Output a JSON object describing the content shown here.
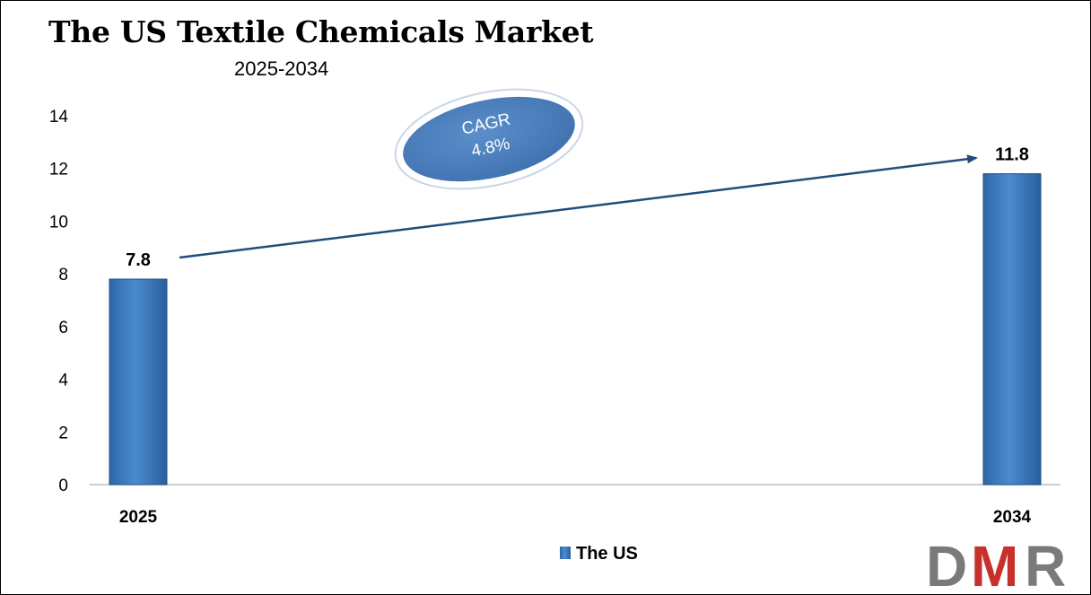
{
  "chart_data": {
    "type": "bar",
    "title": "The US Textile Chemicals Market",
    "subtitle": "2025-2034",
    "categories": [
      "2025",
      "2034"
    ],
    "series": [
      {
        "name": "The US",
        "values": [
          7.8,
          11.8
        ],
        "labels": [
          "7.8",
          "11.8"
        ]
      }
    ],
    "ylim": [
      0,
      14
    ],
    "yticks": [
      0,
      2,
      4,
      6,
      8,
      10,
      12,
      14
    ],
    "grid": false,
    "legend_position": "bottom",
    "annotation": {
      "line1": "CAGR",
      "line2": "4.8%"
    }
  },
  "colors": {
    "bar": "#3d7cc2",
    "bar_dark": "#1f4f86",
    "arrow": "#1f4e79",
    "ellipse": "#4a7fbd",
    "logo_gray": "#7a7a7a",
    "logo_red": "#c8312b"
  },
  "logo": {
    "text": "DMR"
  }
}
